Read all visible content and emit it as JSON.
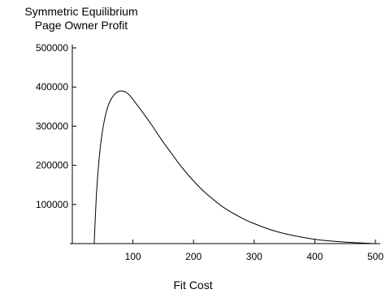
{
  "chart_data": {
    "type": "line",
    "ylabel_lines": [
      "Symmetric Equilibrium",
      "Page Owner Profit"
    ],
    "xlabel": "Fit Cost",
    "xlim": [
      0,
      500
    ],
    "ylim": [
      0,
      500000
    ],
    "x_ticks": [
      100,
      200,
      300,
      400,
      500
    ],
    "x_tick_labels": [
      "100",
      "200",
      "300",
      "400",
      "500"
    ],
    "y_ticks": [
      100000,
      200000,
      300000,
      400000,
      500000
    ],
    "y_tick_labels": [
      "100000",
      "200000",
      "300000",
      "400000",
      "500000"
    ],
    "grid": false,
    "series": [
      {
        "x": [
          36,
          40,
          45,
          50,
          55,
          60,
          65,
          70,
          75,
          80,
          85,
          90,
          95,
          100,
          110,
          120,
          130,
          140,
          150,
          160,
          180,
          200,
          220,
          250,
          280,
          300,
          330,
          360,
          400,
          440,
          470,
          500
        ],
        "y": [
          0,
          130000,
          230000,
          290000,
          330000,
          356000,
          372000,
          382000,
          388000,
          390000,
          389000,
          385000,
          378000,
          368000,
          348000,
          327000,
          305000,
          282000,
          259000,
          238000,
          196000,
          160000,
          129000,
          92000,
          65000,
          51000,
          34000,
          22000,
          11000,
          5000,
          2000,
          0
        ]
      }
    ]
  }
}
